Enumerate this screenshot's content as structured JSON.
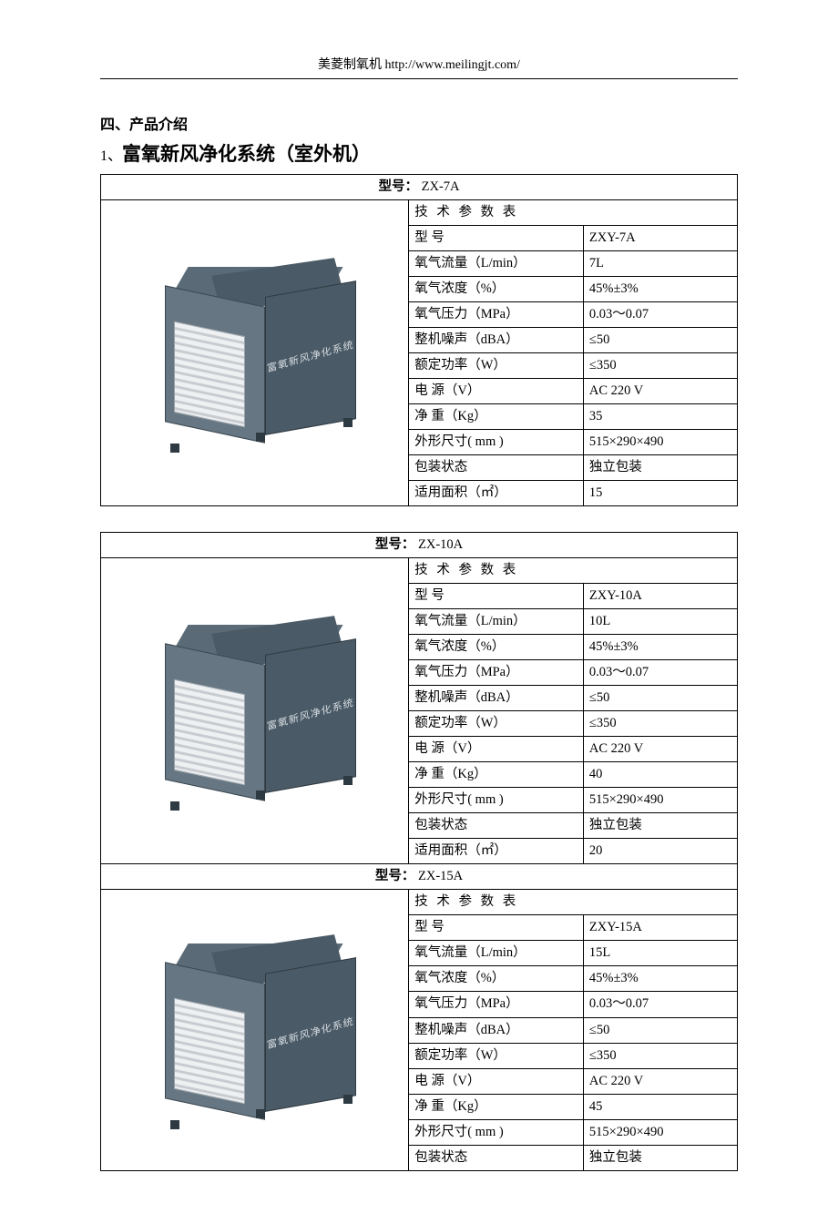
{
  "header": {
    "text": "美菱制氧机 http://www.meilingjt.com/"
  },
  "section": {
    "label": "四、产品介绍"
  },
  "subsection": {
    "num": "1、",
    "title": "富氧新风净化系统（室外机）"
  },
  "machine_text": "富氧新风净化系统",
  "spec_labels": {
    "title": "技 术 参 数 表",
    "model": "型    号",
    "flow": "氧气流量（L/min）",
    "conc": "氧气浓度（%）",
    "press": "氧气压力（MPa）",
    "noise": "整机噪声（dBA）",
    "power": "额定功率（W）",
    "volt": "电    源（V）",
    "weight": "净    重（Kg）",
    "dim": "外形尺寸( mm )",
    "pack": "包装状态",
    "area": "适用面积（㎡）"
  },
  "model_label": "型号：",
  "products": [
    {
      "model_header": "ZX-7A",
      "specs": {
        "model": "ZXY-7A",
        "flow": "7L",
        "conc": "45%±3%",
        "press": "0.03～0.07",
        "noise": "≤50",
        "power": "≤350",
        "volt": "AC 220 V",
        "weight": "35",
        "dim": "515×290×490",
        "pack": "独立包装",
        "area": "15"
      }
    },
    {
      "model_header": "ZX-10A",
      "specs": {
        "model": "ZXY-10A",
        "flow": "10L",
        "conc": "45%±3%",
        "press": "0.03～0.07",
        "noise": "≤50",
        "power": "≤350",
        "volt": "AC 220 V",
        "weight": "40",
        "dim": "515×290×490",
        "pack": "独立包装",
        "area": "20"
      }
    },
    {
      "model_header": "ZX-15A",
      "specs": {
        "model": "ZXY-15A",
        "flow": "15L",
        "conc": "45%±3%",
        "press": "0.03～0.07",
        "noise": "≤50",
        "power": "≤350",
        "volt": "AC 220 V",
        "weight": "45",
        "dim": "515×290×490",
        "pack": "独立包装"
      }
    }
  ]
}
